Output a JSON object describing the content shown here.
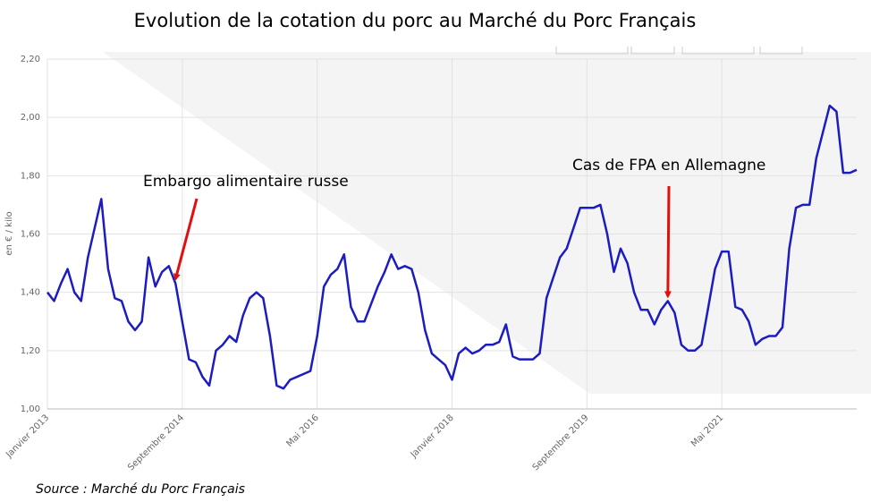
{
  "chart_data": {
    "type": "line",
    "title": "Evolution de la cotation du porc au Marché du Porc Français",
    "y_label": "en € / kilo",
    "source": "Source : Marché du Porc Français",
    "color": "#1c1cc0",
    "x": [
      "2013-01",
      "2013-02",
      "2013-03",
      "2013-04",
      "2013-05",
      "2013-06",
      "2013-07",
      "2013-08",
      "2013-09",
      "2013-10",
      "2013-11",
      "2013-12",
      "2014-01",
      "2014-02",
      "2014-03",
      "2014-04",
      "2014-05",
      "2014-06",
      "2014-07",
      "2014-08",
      "2014-09",
      "2014-10",
      "2014-11",
      "2014-12",
      "2015-01",
      "2015-02",
      "2015-03",
      "2015-04",
      "2015-05",
      "2015-06",
      "2015-07",
      "2015-08",
      "2015-09",
      "2015-10",
      "2015-11",
      "2015-12",
      "2016-01",
      "2016-02",
      "2016-03",
      "2016-04",
      "2016-05",
      "2016-06",
      "2016-07",
      "2016-08",
      "2016-09",
      "2016-10",
      "2016-11",
      "2016-12",
      "2017-01",
      "2017-02",
      "2017-03",
      "2017-04",
      "2017-05",
      "2017-06",
      "2017-07",
      "2017-08",
      "2017-09",
      "2017-10",
      "2017-11",
      "2017-12",
      "2018-01",
      "2018-02",
      "2018-03",
      "2018-04",
      "2018-05",
      "2018-06",
      "2018-07",
      "2018-08",
      "2018-09",
      "2018-10",
      "2018-11",
      "2018-12",
      "2019-01",
      "2019-02",
      "2019-03",
      "2019-04",
      "2019-05",
      "2019-06",
      "2019-07",
      "2019-08",
      "2019-09",
      "2019-10",
      "2019-11",
      "2019-12",
      "2020-01",
      "2020-02",
      "2020-03",
      "2020-04",
      "2020-05",
      "2020-06",
      "2020-07",
      "2020-08",
      "2020-09",
      "2020-10",
      "2020-11",
      "2020-12",
      "2021-01",
      "2021-02",
      "2021-03",
      "2021-04",
      "2021-05",
      "2021-06",
      "2021-07",
      "2021-08",
      "2021-09",
      "2021-10",
      "2021-11",
      "2021-12",
      "2022-01",
      "2022-02",
      "2022-03",
      "2022-04",
      "2022-05",
      "2022-06",
      "2022-07",
      "2022-08",
      "2022-09",
      "2022-10",
      "2022-11",
      "2022-12",
      "2023-01"
    ],
    "values": [
      1.4,
      1.37,
      1.43,
      1.48,
      1.4,
      1.37,
      1.52,
      1.62,
      1.72,
      1.48,
      1.38,
      1.37,
      1.3,
      1.27,
      1.3,
      1.52,
      1.42,
      1.47,
      1.49,
      1.43,
      1.3,
      1.17,
      1.16,
      1.11,
      1.08,
      1.2,
      1.22,
      1.25,
      1.23,
      1.32,
      1.38,
      1.4,
      1.38,
      1.25,
      1.08,
      1.07,
      1.1,
      1.11,
      1.12,
      1.13,
      1.25,
      1.42,
      1.46,
      1.48,
      1.53,
      1.35,
      1.3,
      1.3,
      1.36,
      1.42,
      1.47,
      1.53,
      1.48,
      1.49,
      1.48,
      1.4,
      1.27,
      1.19,
      1.17,
      1.15,
      1.1,
      1.19,
      1.21,
      1.19,
      1.2,
      1.22,
      1.22,
      1.23,
      1.29,
      1.18,
      1.17,
      1.17,
      1.17,
      1.19,
      1.38,
      1.45,
      1.52,
      1.55,
      1.62,
      1.69,
      1.69,
      1.69,
      1.7,
      1.6,
      1.47,
      1.55,
      1.5,
      1.4,
      1.34,
      1.34,
      1.29,
      1.34,
      1.37,
      1.33,
      1.22,
      1.2,
      1.2,
      1.22,
      1.35,
      1.48,
      1.54,
      1.54,
      1.35,
      1.34,
      1.3,
      1.22,
      1.24,
      1.25,
      1.25,
      1.28,
      1.55,
      1.69,
      1.7,
      1.7,
      1.86,
      1.95,
      2.04,
      2.02,
      1.81,
      1.81,
      1.82
    ],
    "xlim": [
      "2013-01",
      "2023-01"
    ],
    "xticks": [
      {
        "value": "2013-01",
        "label": "Janvier 2013"
      },
      {
        "value": "2014-09",
        "label": "Septembre 2014"
      },
      {
        "value": "2016-05",
        "label": "Mai 2016"
      },
      {
        "value": "2018-01",
        "label": "Janvier 2018"
      },
      {
        "value": "2019-09",
        "label": "Septembre 2019"
      },
      {
        "value": "2021-05",
        "label": "Mai 2021"
      }
    ],
    "ylim": [
      1.0,
      2.2
    ],
    "yticks": [
      {
        "value": 1.0,
        "label": "1,00"
      },
      {
        "value": 1.2,
        "label": "1,20"
      },
      {
        "value": 1.4,
        "label": "1,40"
      },
      {
        "value": 1.6,
        "label": "1,60"
      },
      {
        "value": 1.8,
        "label": "1,80"
      },
      {
        "value": 2.0,
        "label": "2,00"
      },
      {
        "value": 2.2,
        "label": "2,20"
      }
    ],
    "grid": true,
    "annotations": [
      {
        "text": "Embargo alimentaire russe",
        "x": "2014-08"
      },
      {
        "text": "Cas de FPA en Allemagne",
        "x": "2020-09"
      }
    ]
  }
}
